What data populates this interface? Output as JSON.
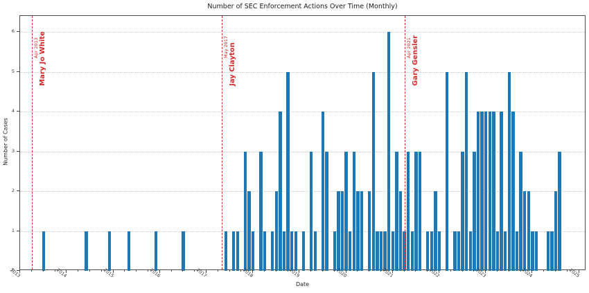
{
  "chart_data": {
    "type": "bar",
    "title": "Number of SEC Enforcement Actions Over Time (Monthly)",
    "xlabel": "Date",
    "ylabel": "Number of Cases",
    "ylim": [
      0,
      6.4
    ],
    "yticks": [
      0,
      1,
      2,
      3,
      4,
      5,
      6
    ],
    "x_tick_years": [
      2013,
      2014,
      2015,
      2016,
      2017,
      2018,
      2019,
      2020,
      2021,
      2022,
      2023,
      2024,
      2025
    ],
    "grid": "horizontal-dotted",
    "legend": "none",
    "bar_color": "#1f77b4",
    "annotation_color": "#d62b2b",
    "points": [
      {
        "date": "2013-07",
        "value": 1
      },
      {
        "date": "2014-06",
        "value": 1
      },
      {
        "date": "2014-12",
        "value": 1
      },
      {
        "date": "2015-05",
        "value": 1
      },
      {
        "date": "2015-12",
        "value": 1
      },
      {
        "date": "2016-07",
        "value": 1
      },
      {
        "date": "2017-06",
        "value": 1
      },
      {
        "date": "2017-08",
        "value": 1
      },
      {
        "date": "2017-09",
        "value": 1
      },
      {
        "date": "2017-11",
        "value": 3
      },
      {
        "date": "2017-12",
        "value": 2
      },
      {
        "date": "2018-01",
        "value": 1
      },
      {
        "date": "2018-03",
        "value": 3
      },
      {
        "date": "2018-04",
        "value": 1
      },
      {
        "date": "2018-06",
        "value": 1
      },
      {
        "date": "2018-07",
        "value": 2
      },
      {
        "date": "2018-08",
        "value": 4
      },
      {
        "date": "2018-09",
        "value": 1
      },
      {
        "date": "2018-10",
        "value": 5
      },
      {
        "date": "2018-11",
        "value": 1
      },
      {
        "date": "2018-12",
        "value": 1
      },
      {
        "date": "2019-02",
        "value": 1
      },
      {
        "date": "2019-04",
        "value": 3
      },
      {
        "date": "2019-05",
        "value": 1
      },
      {
        "date": "2019-07",
        "value": 4
      },
      {
        "date": "2019-08",
        "value": 3
      },
      {
        "date": "2019-10",
        "value": 1
      },
      {
        "date": "2019-11",
        "value": 2
      },
      {
        "date": "2019-12",
        "value": 2
      },
      {
        "date": "2020-01",
        "value": 3
      },
      {
        "date": "2020-02",
        "value": 1
      },
      {
        "date": "2020-03",
        "value": 3
      },
      {
        "date": "2020-04",
        "value": 2
      },
      {
        "date": "2020-05",
        "value": 2
      },
      {
        "date": "2020-07",
        "value": 2
      },
      {
        "date": "2020-08",
        "value": 5
      },
      {
        "date": "2020-09",
        "value": 1
      },
      {
        "date": "2020-10",
        "value": 1
      },
      {
        "date": "2020-11",
        "value": 1
      },
      {
        "date": "2020-12",
        "value": 6
      },
      {
        "date": "2021-01",
        "value": 1
      },
      {
        "date": "2021-02",
        "value": 3
      },
      {
        "date": "2021-03",
        "value": 2
      },
      {
        "date": "2021-04",
        "value": 1
      },
      {
        "date": "2021-05",
        "value": 3
      },
      {
        "date": "2021-06",
        "value": 1
      },
      {
        "date": "2021-07",
        "value": 3
      },
      {
        "date": "2021-08",
        "value": 3
      },
      {
        "date": "2021-10",
        "value": 1
      },
      {
        "date": "2021-11",
        "value": 1
      },
      {
        "date": "2021-12",
        "value": 2
      },
      {
        "date": "2022-01",
        "value": 1
      },
      {
        "date": "2022-03",
        "value": 5
      },
      {
        "date": "2022-05",
        "value": 1
      },
      {
        "date": "2022-06",
        "value": 1
      },
      {
        "date": "2022-07",
        "value": 3
      },
      {
        "date": "2022-08",
        "value": 5
      },
      {
        "date": "2022-09",
        "value": 1
      },
      {
        "date": "2022-10",
        "value": 3
      },
      {
        "date": "2022-11",
        "value": 4
      },
      {
        "date": "2022-12",
        "value": 4
      },
      {
        "date": "2023-01",
        "value": 4
      },
      {
        "date": "2023-02",
        "value": 4
      },
      {
        "date": "2023-03",
        "value": 4
      },
      {
        "date": "2023-04",
        "value": 1
      },
      {
        "date": "2023-05",
        "value": 4
      },
      {
        "date": "2023-06",
        "value": 1
      },
      {
        "date": "2023-07",
        "value": 5
      },
      {
        "date": "2023-08",
        "value": 4
      },
      {
        "date": "2023-09",
        "value": 1
      },
      {
        "date": "2023-10",
        "value": 3
      },
      {
        "date": "2023-11",
        "value": 2
      },
      {
        "date": "2023-12",
        "value": 2
      },
      {
        "date": "2024-01",
        "value": 1
      },
      {
        "date": "2024-02",
        "value": 1
      },
      {
        "date": "2024-05",
        "value": 1
      },
      {
        "date": "2024-06",
        "value": 1
      },
      {
        "date": "2024-07",
        "value": 2
      },
      {
        "date": "2024-08",
        "value": 3
      }
    ],
    "annotations": [
      {
        "date": "2013-04",
        "date_label": "Apr 2013",
        "name": "Mary Jo White"
      },
      {
        "date": "2017-05",
        "date_label": "May 2017",
        "name": "Jay Clayton"
      },
      {
        "date": "2021-04",
        "date_label": "Apr 2021",
        "name": "Gary Gensler"
      }
    ]
  }
}
